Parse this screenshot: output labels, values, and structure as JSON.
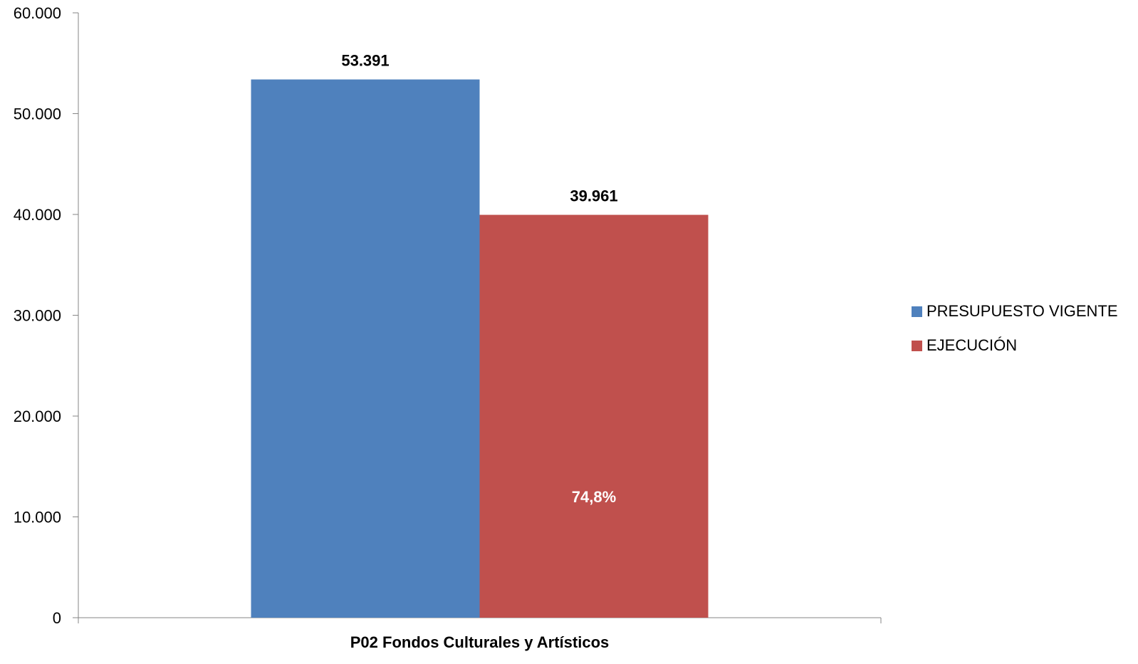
{
  "chart_data": {
    "type": "bar",
    "categories": [
      "P02 Fondos Culturales y Artísticos"
    ],
    "series": [
      {
        "name": "PRESUPUESTO VIGENTE",
        "values": [
          53391
        ],
        "color": "#4F81BD",
        "label": "53.391"
      },
      {
        "name": "EJECUCIÓN",
        "values": [
          39961
        ],
        "color": "#C0504D",
        "label": "39.961",
        "inner_label": "74,8%"
      }
    ],
    "ylim": [
      0,
      60000
    ],
    "yticks": [
      0,
      10000,
      20000,
      30000,
      40000,
      50000,
      60000
    ],
    "ytick_labels": [
      "0",
      "10.000",
      "20.000",
      "30.000",
      "40.000",
      "50.000",
      "60.000"
    ],
    "title": "",
    "xlabel": "",
    "ylabel": "",
    "legend_position": "right",
    "grid": false
  }
}
